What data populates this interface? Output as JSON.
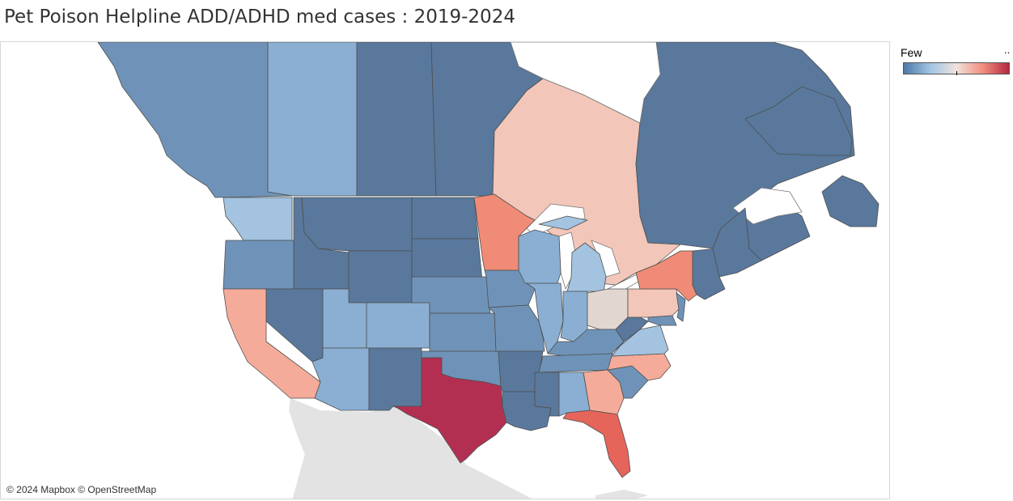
{
  "title": "Pet Poison Helpline ADD/ADHD med cases : 2019-2024",
  "attribution": "© 2024 Mapbox © OpenStreetMap",
  "legend": {
    "low_label": "Few",
    "high_label": "..",
    "colors": [
      "#4e79a7",
      "#a0c4e2",
      "#f0e2dc",
      "#f28e7f",
      "#b3283f"
    ]
  },
  "palette": {
    "dark_blue": "#59789c",
    "mid_blue": "#6f93b8",
    "light_blue": "#8aafd3",
    "pale_blue": "#a3c3e0",
    "neutral": "#e2d6d0",
    "pale_red": "#f2c6b9",
    "light_red": "#f5ab9a",
    "red": "#ef8b76",
    "deep_red": "#e5655b",
    "crimson": "#b32f52",
    "mexico": "#e3e3e3"
  },
  "regions": [
    {
      "name": "British Columbia",
      "shade": "mid_blue"
    },
    {
      "name": "Alberta",
      "shade": "light_blue"
    },
    {
      "name": "Saskatchewan",
      "shade": "dark_blue"
    },
    {
      "name": "Manitoba",
      "shade": "dark_blue"
    },
    {
      "name": "Ontario",
      "shade": "pale_red"
    },
    {
      "name": "Quebec",
      "shade": "dark_blue"
    },
    {
      "name": "Newfoundland and Labrador",
      "shade": "dark_blue"
    },
    {
      "name": "Maritimes",
      "shade": "dark_blue"
    },
    {
      "name": "Washington",
      "shade": "pale_blue"
    },
    {
      "name": "Oregon",
      "shade": "mid_blue"
    },
    {
      "name": "California",
      "shade": "light_red"
    },
    {
      "name": "Idaho",
      "shade": "dark_blue"
    },
    {
      "name": "Nevada",
      "shade": "dark_blue"
    },
    {
      "name": "Montana",
      "shade": "dark_blue"
    },
    {
      "name": "Wyoming",
      "shade": "dark_blue"
    },
    {
      "name": "Utah",
      "shade": "light_blue"
    },
    {
      "name": "Colorado",
      "shade": "light_blue"
    },
    {
      "name": "Arizona",
      "shade": "light_blue"
    },
    {
      "name": "New Mexico",
      "shade": "dark_blue"
    },
    {
      "name": "North Dakota",
      "shade": "dark_blue"
    },
    {
      "name": "South Dakota",
      "shade": "dark_blue"
    },
    {
      "name": "Nebraska",
      "shade": "mid_blue"
    },
    {
      "name": "Kansas",
      "shade": "mid_blue"
    },
    {
      "name": "Oklahoma",
      "shade": "mid_blue"
    },
    {
      "name": "Texas",
      "shade": "crimson"
    },
    {
      "name": "Minnesota",
      "shade": "red"
    },
    {
      "name": "Iowa",
      "shade": "mid_blue"
    },
    {
      "name": "Missouri",
      "shade": "mid_blue"
    },
    {
      "name": "Arkansas",
      "shade": "dark_blue"
    },
    {
      "name": "Louisiana",
      "shade": "dark_blue"
    },
    {
      "name": "Wisconsin",
      "shade": "light_blue"
    },
    {
      "name": "Michigan",
      "shade": "pale_blue"
    },
    {
      "name": "Illinois",
      "shade": "light_blue"
    },
    {
      "name": "Indiana",
      "shade": "light_blue"
    },
    {
      "name": "Ohio",
      "shade": "neutral"
    },
    {
      "name": "Kentucky",
      "shade": "mid_blue"
    },
    {
      "name": "Tennessee",
      "shade": "mid_blue"
    },
    {
      "name": "Mississippi",
      "shade": "dark_blue"
    },
    {
      "name": "Alabama",
      "shade": "light_blue"
    },
    {
      "name": "Georgia",
      "shade": "light_red"
    },
    {
      "name": "Florida",
      "shade": "deep_red"
    },
    {
      "name": "South Carolina",
      "shade": "mid_blue"
    },
    {
      "name": "North Carolina",
      "shade": "light_red"
    },
    {
      "name": "Virginia",
      "shade": "pale_blue"
    },
    {
      "name": "West Virginia",
      "shade": "dark_blue"
    },
    {
      "name": "Pennsylvania",
      "shade": "pale_red"
    },
    {
      "name": "New York",
      "shade": "red"
    },
    {
      "name": "New Jersey",
      "shade": "mid_blue"
    },
    {
      "name": "Maryland",
      "shade": "mid_blue"
    },
    {
      "name": "New England",
      "shade": "dark_blue"
    },
    {
      "name": "Maine",
      "shade": "dark_blue"
    }
  ]
}
